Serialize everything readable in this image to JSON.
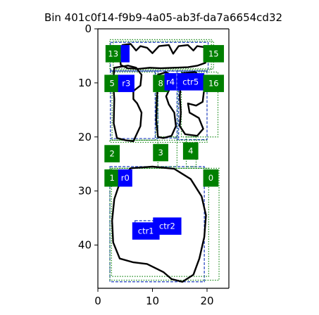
{
  "chart_data": {
    "type": "scatter",
    "title": "Bin 401c0f14-f9b9-4a05-ab3f-da7a6654cd32",
    "xlabel": "",
    "ylabel": "",
    "xlim": [
      0,
      24
    ],
    "ylim": [
      48,
      0
    ],
    "y_inverted": true,
    "aspect": "equal",
    "grid": false,
    "xticks": [
      0,
      10,
      20
    ],
    "yticks": [
      0,
      10,
      20,
      30,
      40
    ],
    "colors": {
      "outline": "#000000",
      "blue_box": "#1f3fbf",
      "green_box": "#1a8a1a",
      "blue_label": "#0000ff",
      "green_label": "#008000",
      "label_text": "#ffffff"
    },
    "shapes": [
      {
        "id": "shape-bottom-blob",
        "points": [
          [
            6,
            25.8
          ],
          [
            10,
            25.5
          ],
          [
            14,
            25.9
          ],
          [
            17,
            27.8
          ],
          [
            19,
            31
          ],
          [
            19.8,
            34.5
          ],
          [
            19.5,
            38.5
          ],
          [
            18.6,
            42.5
          ],
          [
            17.5,
            45.5
          ],
          [
            15.5,
            46.8
          ],
          [
            13.5,
            46.3
          ],
          [
            12,
            45
          ],
          [
            9,
            43.5
          ],
          [
            6.5,
            43.2
          ],
          [
            4,
            42.5
          ],
          [
            2.8,
            39.5
          ],
          [
            2.6,
            35.5
          ],
          [
            3,
            31.5
          ],
          [
            4,
            28.5
          ],
          [
            5,
            26.8
          ],
          [
            6,
            25.8
          ]
        ]
      },
      {
        "id": "shape-left-letter",
        "points": [
          [
            3,
            7.2
          ],
          [
            5.5,
            6.8
          ],
          [
            7,
            7.2
          ],
          [
            8,
            8.5
          ],
          [
            7.8,
            10.5
          ],
          [
            6.5,
            11.5
          ],
          [
            6.5,
            13
          ],
          [
            7.2,
            13.8
          ],
          [
            8,
            15.5
          ],
          [
            7.8,
            18
          ],
          [
            6.5,
            20.8
          ],
          [
            5,
            20.6
          ],
          [
            3.5,
            20.2
          ],
          [
            2.9,
            17.5
          ],
          [
            3,
            13
          ],
          [
            2.8,
            10
          ],
          [
            3,
            7.2
          ]
        ]
      },
      {
        "id": "shape-middle-letter",
        "points": [
          [
            11,
            8.5
          ],
          [
            12.5,
            8
          ],
          [
            13.5,
            8.6
          ],
          [
            13.2,
            11
          ],
          [
            12.5,
            12.5
          ],
          [
            13,
            14
          ],
          [
            14,
            15.5
          ],
          [
            14.3,
            18
          ],
          [
            13.5,
            19.8
          ],
          [
            12,
            20.2
          ],
          [
            11,
            20
          ],
          [
            10.7,
            17
          ],
          [
            10.8,
            13
          ],
          [
            11,
            10
          ],
          [
            11,
            8.5
          ]
        ]
      },
      {
        "id": "shape-right-letter",
        "points": [
          [
            15.5,
            8.2
          ],
          [
            17.8,
            8
          ],
          [
            19,
            9
          ],
          [
            19.5,
            11
          ],
          [
            19.2,
            13.5
          ],
          [
            18,
            14.2
          ],
          [
            16.5,
            13.8
          ],
          [
            16.8,
            15.5
          ],
          [
            18.5,
            16.5
          ],
          [
            19.3,
            18.5
          ],
          [
            18.2,
            19.8
          ],
          [
            16,
            19.5
          ],
          [
            15,
            18
          ],
          [
            15.2,
            15.5
          ],
          [
            15,
            12.5
          ],
          [
            15.2,
            10
          ],
          [
            15.5,
            8.2
          ]
        ]
      },
      {
        "id": "shape-top-squiggle",
        "points": [
          [
            4,
            5
          ],
          [
            4.5,
            3
          ],
          [
            6,
            2.8
          ],
          [
            7,
            4
          ],
          [
            7.8,
            3.2
          ],
          [
            9,
            3.5
          ],
          [
            10,
            4.5
          ],
          [
            11.2,
            3.2
          ],
          [
            13,
            3
          ],
          [
            13.8,
            4.6
          ],
          [
            14.8,
            3.2
          ],
          [
            16.5,
            3
          ],
          [
            17.5,
            4
          ],
          [
            18.2,
            3.2
          ],
          [
            19.5,
            3.4
          ],
          [
            20,
            4.8
          ],
          [
            19.7,
            6.3
          ],
          [
            18.3,
            6.8
          ],
          [
            16.5,
            7.1
          ],
          [
            14,
            7.2
          ],
          [
            11.5,
            7.3
          ],
          [
            9.5,
            7.2
          ],
          [
            7.5,
            7.4
          ],
          [
            5.5,
            7.3
          ],
          [
            4.2,
            6.7
          ],
          [
            4,
            5
          ]
        ]
      },
      {
        "id": "shape-ctr-line",
        "points": [
          [
            8,
            37.5
          ],
          [
            14.5,
            37.3
          ]
        ]
      }
    ],
    "boxes": [
      {
        "id": "box-ctr0",
        "color": "blue",
        "x0": 2.2,
        "y0": 25.5,
        "x1": 19.5,
        "y1": 46.8
      },
      {
        "id": "box-0",
        "color": "green",
        "x0": 2.2,
        "y0": 25.8,
        "x1": 22.2,
        "y1": 46.5
      },
      {
        "id": "box-1",
        "color": "green",
        "x0": 2.5,
        "y0": 25.8,
        "x1": 20.3,
        "y1": 45.8
      },
      {
        "id": "box-top",
        "color": "blue",
        "x0": 2.3,
        "y0": 2.5,
        "x1": 20.2,
        "y1": 7.8
      },
      {
        "id": "box-13",
        "color": "green",
        "x0": 2.2,
        "y0": 2.0,
        "x1": 20.8,
        "y1": 7.6
      },
      {
        "id": "box-15",
        "color": "green",
        "x0": 2.8,
        "y0": 2.3,
        "x1": 21.2,
        "y1": 7.4
      },
      {
        "id": "box-ctr3",
        "color": "blue",
        "x0": 2.3,
        "y0": 7.8,
        "x1": 11.0,
        "y1": 20.3
      },
      {
        "id": "box-5",
        "color": "green",
        "x0": 2.6,
        "y0": 8.0,
        "x1": 10.6,
        "y1": 20.6
      },
      {
        "id": "box-ctr4",
        "color": "blue",
        "x0": 10.5,
        "y0": 7.8,
        "x1": 14.8,
        "y1": 20.2
      },
      {
        "id": "box-8",
        "color": "green",
        "x0": 11.0,
        "y0": 8.3,
        "x1": 14.6,
        "y1": 20.0
      },
      {
        "id": "box-ctr5",
        "color": "blue",
        "x0": 14.5,
        "y0": 7.8,
        "x1": 20.0,
        "y1": 20.5
      },
      {
        "id": "box-16",
        "color": "green",
        "x0": 15.3,
        "y0": 8.0,
        "x1": 22.0,
        "y1": 20.0
      },
      {
        "id": "box-2",
        "color": "green",
        "x0": 2.2,
        "y0": 20.6,
        "x1": 20.0,
        "y1": 21.0
      },
      {
        "id": "box-3",
        "color": "green",
        "x0": 11.0,
        "y0": 20.0,
        "x1": 14.5,
        "y1": 25.5
      },
      {
        "id": "box-4",
        "color": "green",
        "x0": 16.2,
        "y0": 20.0,
        "x1": 18.0,
        "y1": 25.5
      },
      {
        "id": "box-ctr1",
        "color": "blue",
        "x0": 6.8,
        "y0": 35.5,
        "x1": 10.5,
        "y1": 37.8
      },
      {
        "id": "box-ctr2",
        "color": "blue",
        "x0": 10.5,
        "y0": 35.2,
        "x1": 15.0,
        "y1": 37.0
      }
    ],
    "labels": [
      {
        "id": "label-13",
        "text": "13",
        "color": "green",
        "x": 2.8,
        "y": 3.0,
        "w": 2.8,
        "h": 3.2
      },
      {
        "id": "label-ctr-top",
        "text": "",
        "color": "blue",
        "x": 5.0,
        "y": 3.0,
        "w": 1.6,
        "h": 3.2
      },
      {
        "id": "label-15",
        "text": "15",
        "color": "green",
        "x": 21.2,
        "y": 3.0,
        "w": 3.8,
        "h": 3.2
      },
      {
        "id": "label-5",
        "text": "5",
        "color": "green",
        "x": 2.6,
        "y": 8.5,
        "w": 2.8,
        "h": 3.2
      },
      {
        "id": "label-ctr3",
        "text": "r3",
        "color": "blue",
        "x": 5.2,
        "y": 8.5,
        "w": 3.0,
        "h": 3.2
      },
      {
        "id": "label-8",
        "text": "8",
        "color": "green",
        "x": 11.5,
        "y": 8.5,
        "w": 2.8,
        "h": 3.2
      },
      {
        "id": "label-ctr4",
        "text": "r4",
        "color": "blue",
        "x": 13.3,
        "y": 8.2,
        "w": 2.2,
        "h": 3.2
      },
      {
        "id": "label-ctr5",
        "text": "ctr5",
        "color": "blue",
        "x": 17.0,
        "y": 8.2,
        "w": 5.0,
        "h": 3.2
      },
      {
        "id": "label-16",
        "text": "16",
        "color": "green",
        "x": 21.2,
        "y": 8.5,
        "w": 3.8,
        "h": 3.2
      },
      {
        "id": "label-2",
        "text": "2",
        "color": "green",
        "x": 2.6,
        "y": 21.5,
        "w": 2.8,
        "h": 3.2
      },
      {
        "id": "label-3",
        "text": "3",
        "color": "green",
        "x": 11.5,
        "y": 21.3,
        "w": 2.8,
        "h": 3.2
      },
      {
        "id": "label-4",
        "text": "4",
        "color": "green",
        "x": 17.0,
        "y": 21.0,
        "w": 2.8,
        "h": 3.2
      },
      {
        "id": "label-1",
        "text": "1",
        "color": "green",
        "x": 2.6,
        "y": 26.0,
        "w": 2.8,
        "h": 3.2
      },
      {
        "id": "label-ctr0",
        "text": "r0",
        "color": "blue",
        "x": 5.0,
        "y": 26.0,
        "w": 2.6,
        "h": 3.2
      },
      {
        "id": "label-0",
        "text": "0",
        "color": "green",
        "x": 20.7,
        "y": 26.0,
        "w": 2.8,
        "h": 3.2
      },
      {
        "id": "label-ctr1",
        "text": "ctr1",
        "color": "blue",
        "x": 8.8,
        "y": 35.8,
        "w": 5.0,
        "h": 3.2
      },
      {
        "id": "label-ctr2",
        "text": "ctr2",
        "color": "blue",
        "x": 12.7,
        "y": 34.9,
        "w": 5.2,
        "h": 3.2
      }
    ]
  }
}
